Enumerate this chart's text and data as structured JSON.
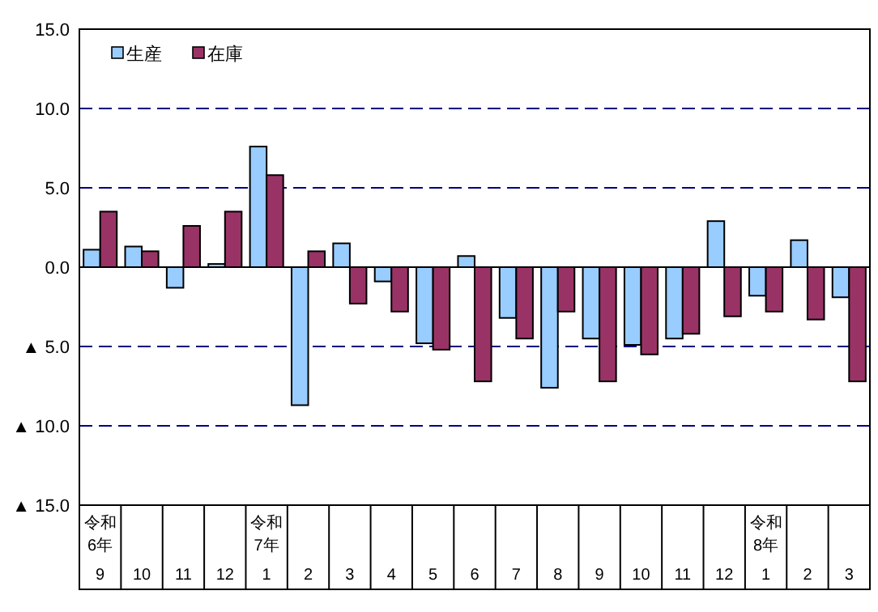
{
  "chart_data": {
    "type": "bar",
    "categories": [
      "令和\n6年\n9",
      "10",
      "11",
      "12",
      "令和\n7年\n1",
      "2",
      "3",
      "4",
      "5",
      "6",
      "7",
      "8",
      "9",
      "10",
      "11",
      "12",
      "令和\n8年\n1",
      "2",
      "3"
    ],
    "series": [
      {
        "name": "生産",
        "color": "#99ccff",
        "values": [
          1.1,
          1.3,
          -1.3,
          0.2,
          7.6,
          -8.7,
          1.5,
          -0.9,
          -4.8,
          0.7,
          -3.2,
          -7.6,
          -4.5,
          -4.9,
          -4.5,
          2.9,
          -1.8,
          1.7,
          -1.9
        ]
      },
      {
        "name": "在庫",
        "color": "#993366",
        "values": [
          3.5,
          1.0,
          2.6,
          3.5,
          5.8,
          1.0,
          -2.3,
          -2.8,
          -5.2,
          -7.2,
          -4.5,
          -2.8,
          -7.2,
          -5.5,
          -4.2,
          -3.1,
          -2.8,
          -3.3,
          -7.2
        ]
      }
    ],
    "ylim": [
      -15,
      15
    ],
    "yticks": [
      {
        "value": 15,
        "label": "15.0"
      },
      {
        "value": 10,
        "label": "10.0"
      },
      {
        "value": 5,
        "label": "5.0"
      },
      {
        "value": 0,
        "label": "0.0"
      },
      {
        "value": -5,
        "label": "▲ 5.0"
      },
      {
        "value": -10,
        "label": "▲ 10.0"
      },
      {
        "value": -15,
        "label": "▲ 15.0"
      }
    ],
    "grid": "y",
    "legend": "top left"
  }
}
